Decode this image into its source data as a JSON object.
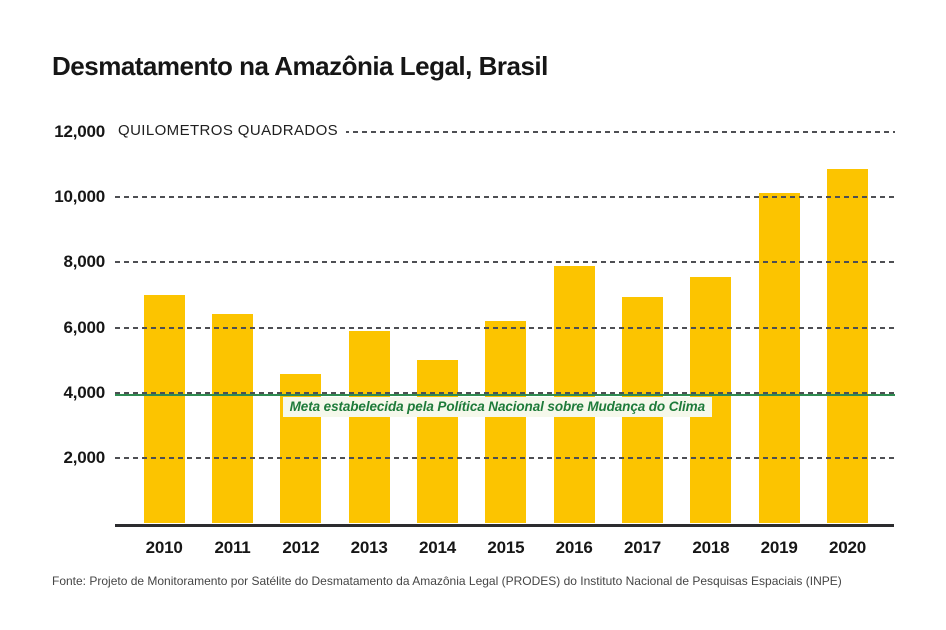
{
  "title": "Desmatamento na Amazônia Legal, Brasil",
  "source": "Fonte: Projeto de Monitoramento por Satélite do Desmatamento da Amazônia Legal (PRODES) do Instituto Nacional de Pesquisas Espaciais (INPE)",
  "chart_data": {
    "type": "bar",
    "title": "Desmatamento na Amazônia Legal, Brasil",
    "unit_label": "QUILOMETROS QUADRADOS",
    "categories": [
      "2010",
      "2011",
      "2012",
      "2013",
      "2014",
      "2015",
      "2016",
      "2017",
      "2018",
      "2019",
      "2020"
    ],
    "values": [
      7000,
      6418,
      4571,
      5891,
      5012,
      6207,
      7893,
      6947,
      7536,
      10129,
      10851
    ],
    "y_ticks": [
      2000,
      4000,
      6000,
      8000,
      10000,
      12000
    ],
    "ylim": [
      0,
      12000
    ],
    "grid": "horizontal-dashed",
    "legend": "none",
    "bar_color": "#FCC400",
    "target_line": {
      "value": 3925,
      "label": "Meta estabelecida pela Política Nacional sobre Mudança do Clima",
      "color": "#2E8B50",
      "label_color": "#1E7B3A",
      "label_bg": "#F5F8EB"
    }
  }
}
